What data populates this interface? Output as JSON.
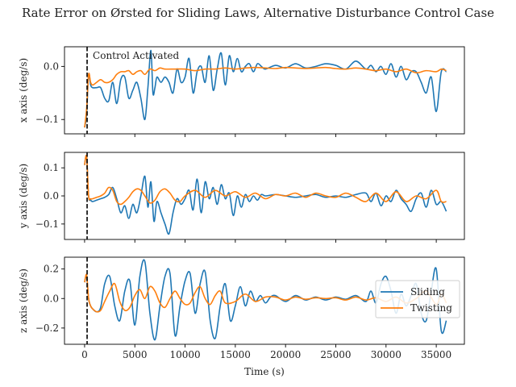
{
  "chart_data": {
    "type": "line",
    "title": "Rate Error on Ørsted for Sliding Laws, Alternative Disturbance Control Case",
    "xlabel": "Time (s)",
    "xlim": [
      -2000,
      37800
    ],
    "xticks": [
      0,
      5000,
      10000,
      15000,
      20000,
      25000,
      30000,
      35000
    ],
    "annotation": {
      "text": "Control Activated",
      "x": 250
    },
    "legend": {
      "position": "right",
      "entries": [
        "Sliding",
        "Twisting"
      ]
    },
    "colors": {
      "Sliding": "#1f77b4",
      "Twisting": "#ff7f0e",
      "vline": "#000000"
    },
    "panels": [
      {
        "ylabel": "x axis (deg/s)",
        "ylim": [
          -0.127,
          0.037
        ],
        "yticks": [
          0.0,
          -0.1
        ],
        "ytick_labels": [
          "0.0",
          "−0.1"
        ],
        "series": [
          {
            "name": "Sliding",
            "x": [
              0,
              200,
              400,
              600,
              800,
              1200,
              1600,
              2000,
              2400,
              2800,
              3200,
              3600,
              4000,
              4400,
              4800,
              5200,
              5600,
              6000,
              6300,
              6600,
              6800,
              7000,
              7200,
              7600,
              8000,
              8400,
              8800,
              9200,
              9600,
              10000,
              10400,
              10800,
              11200,
              11600,
              12000,
              12400,
              12800,
              13200,
              13600,
              14000,
              14400,
              14800,
              15200,
              15600,
              16000,
              16400,
              16800,
              17200,
              17600,
              18000,
              19000,
              20000,
              21000,
              22000,
              23000,
              24000,
              25000,
              26000,
              27000,
              28000,
              28500,
              29000,
              29500,
              30000,
              30500,
              31000,
              31500,
              32000,
              32500,
              33000,
              33500,
              34000,
              34500,
              35000,
              35500,
              36000
            ],
            "values": [
              -0.115,
              -0.09,
              -0.015,
              -0.035,
              -0.04,
              -0.04,
              -0.04,
              -0.06,
              -0.065,
              -0.03,
              -0.07,
              -0.025,
              -0.02,
              -0.06,
              -0.045,
              -0.03,
              -0.06,
              -0.1,
              -0.04,
              0.03,
              -0.05,
              -0.04,
              -0.02,
              -0.03,
              -0.02,
              -0.03,
              -0.05,
              -0.005,
              -0.03,
              -0.02,
              0.015,
              -0.05,
              -0.01,
              0.0,
              -0.03,
              0.02,
              -0.045,
              -0.005,
              0.025,
              -0.035,
              0.02,
              -0.01,
              0.015,
              -0.01,
              0.0,
              0.005,
              -0.01,
              0.005,
              0.0,
              -0.005,
              0.002,
              -0.003,
              0.005,
              -0.003,
              0.0,
              0.005,
              0.002,
              -0.005,
              0.01,
              -0.005,
              0.002,
              -0.01,
              0.0,
              -0.015,
              0.005,
              -0.02,
              0.0,
              -0.025,
              -0.01,
              -0.01,
              -0.03,
              -0.05,
              -0.02,
              -0.085,
              -0.01,
              -0.01
            ]
          },
          {
            "name": "Twisting",
            "x": [
              0,
              200,
              400,
              600,
              800,
              1200,
              1600,
              2000,
              2400,
              2800,
              3200,
              3600,
              4000,
              4400,
              4800,
              5200,
              5600,
              6000,
              6500,
              7000,
              7500,
              8000,
              9000,
              10000,
              11000,
              12000,
              13000,
              14000,
              15000,
              16000,
              17000,
              18000,
              19000,
              20000,
              21000,
              22000,
              23000,
              24000,
              25000,
              26000,
              27000,
              28000,
              29000,
              30000,
              31000,
              32000,
              33000,
              34000,
              35000,
              35500,
              36000
            ],
            "values": [
              -0.115,
              -0.08,
              -0.015,
              -0.03,
              -0.035,
              -0.03,
              -0.025,
              -0.03,
              -0.03,
              -0.025,
              -0.015,
              -0.01,
              -0.01,
              -0.008,
              -0.015,
              -0.01,
              -0.008,
              -0.015,
              -0.005,
              -0.008,
              -0.003,
              -0.005,
              -0.005,
              -0.005,
              -0.008,
              -0.005,
              -0.005,
              -0.003,
              -0.005,
              -0.003,
              -0.002,
              -0.003,
              -0.004,
              -0.002,
              -0.003,
              -0.004,
              -0.003,
              -0.002,
              -0.004,
              -0.005,
              -0.003,
              -0.005,
              -0.008,
              -0.005,
              -0.01,
              -0.005,
              -0.012,
              -0.008,
              -0.01,
              -0.005,
              -0.008
            ]
          }
        ]
      },
      {
        "ylabel": "y axis (deg/s)",
        "ylim": [
          -0.155,
          0.155
        ],
        "yticks": [
          0.1,
          0.0,
          -0.1
        ],
        "ytick_labels": [
          "0.1",
          "0.0",
          "−0.1"
        ],
        "series": [
          {
            "name": "Sliding",
            "x": [
              0,
              200,
              400,
              600,
              800,
              1200,
              1600,
              2000,
              2400,
              2800,
              3200,
              3600,
              4000,
              4400,
              4800,
              5200,
              5600,
              6000,
              6300,
              6600,
              6900,
              7200,
              7600,
              8000,
              8400,
              8800,
              9200,
              9600,
              10000,
              10400,
              10800,
              11200,
              11600,
              12000,
              12400,
              12800,
              13200,
              13600,
              14000,
              14400,
              14800,
              15200,
              15600,
              16000,
              16400,
              16800,
              17200,
              17600,
              18000,
              19000,
              20000,
              21000,
              22000,
              23000,
              24000,
              25000,
              26000,
              27000,
              28000,
              28500,
              29000,
              29500,
              30000,
              30500,
              31000,
              31500,
              32000,
              32500,
              33000,
              33500,
              34000,
              34500,
              35000,
              35500,
              36000
            ],
            "values": [
              0.11,
              0.14,
              0.0,
              -0.015,
              -0.02,
              -0.015,
              -0.01,
              -0.005,
              0.005,
              0.03,
              -0.01,
              -0.06,
              -0.035,
              -0.08,
              -0.03,
              -0.06,
              0.0,
              0.07,
              -0.04,
              0.05,
              -0.09,
              -0.02,
              -0.06,
              -0.1,
              -0.135,
              -0.06,
              -0.01,
              -0.03,
              -0.01,
              0.02,
              -0.05,
              0.06,
              -0.06,
              0.05,
              -0.01,
              0.03,
              -0.03,
              0.04,
              -0.01,
              0.01,
              -0.07,
              0.0,
              -0.04,
              0.005,
              -0.02,
              0.0,
              -0.015,
              0.005,
              0.0,
              0.005,
              0.0,
              -0.005,
              0.0,
              0.005,
              -0.005,
              0.0,
              -0.005,
              0.005,
              0.01,
              -0.02,
              0.01,
              -0.035,
              0.0,
              -0.02,
              0.02,
              -0.01,
              -0.03,
              -0.055,
              -0.01,
              0.01,
              -0.04,
              0.02,
              -0.03,
              -0.02,
              -0.055
            ]
          },
          {
            "name": "Twisting",
            "x": [
              0,
              200,
              400,
              600,
              800,
              1200,
              1600,
              2000,
              2400,
              2800,
              3200,
              3600,
              4000,
              4400,
              4800,
              5200,
              5600,
              6000,
              6500,
              7000,
              7500,
              8000,
              8500,
              9000,
              9500,
              10000,
              11000,
              12000,
              13000,
              14000,
              15000,
              16000,
              17000,
              18000,
              19000,
              20000,
              21000,
              22000,
              23000,
              24000,
              25000,
              26000,
              27000,
              28000,
              29000,
              30000,
              31000,
              32000,
              33000,
              34000,
              35000,
              35500,
              36000
            ],
            "values": [
              0.11,
              0.14,
              0.0,
              -0.01,
              -0.01,
              -0.005,
              0.0,
              0.01,
              0.03,
              0.02,
              -0.02,
              -0.03,
              -0.02,
              -0.005,
              0.015,
              0.025,
              0.02,
              0.0,
              -0.025,
              -0.015,
              0.015,
              0.025,
              0.01,
              -0.015,
              -0.02,
              0.0,
              0.02,
              -0.005,
              0.02,
              0.0,
              0.015,
              -0.005,
              0.01,
              -0.01,
              0.005,
              0.0,
              0.01,
              -0.005,
              0.01,
              0.0,
              -0.005,
              0.01,
              -0.005,
              -0.02,
              0.01,
              -0.02,
              0.015,
              -0.02,
              0.0,
              -0.01,
              0.02,
              -0.02,
              -0.02
            ]
          }
        ]
      },
      {
        "ylabel": "z axis (deg/s)",
        "ylim": [
          -0.31,
          0.28
        ],
        "yticks": [
          0.2,
          0.0,
          -0.2
        ],
        "ytick_labels": [
          "0.2",
          "0.0",
          "−0.2"
        ],
        "series": [
          {
            "name": "Sliding",
            "x": [
              0,
              200,
              400,
              600,
              800,
              1200,
              1600,
              2000,
              2500,
              3000,
              3500,
              4000,
              4500,
              5000,
              5500,
              6000,
              6500,
              7000,
              7500,
              8000,
              8500,
              9000,
              9500,
              10000,
              10500,
              11000,
              11500,
              12000,
              12500,
              13000,
              13500,
              14000,
              14500,
              15000,
              15500,
              16000,
              16500,
              17000,
              17500,
              18000,
              18500,
              19000,
              20000,
              21000,
              22000,
              23000,
              24000,
              25000,
              26000,
              27000,
              28000,
              28500,
              29000,
              29500,
              30000,
              30500,
              31000,
              31500,
              32000,
              32500,
              33000,
              33500,
              34000,
              34500,
              35000,
              35500,
              36000
            ],
            "values": [
              0.11,
              0.15,
              0.0,
              -0.05,
              -0.07,
              -0.09,
              -0.06,
              0.1,
              0.15,
              -0.05,
              -0.15,
              0.05,
              0.12,
              -0.18,
              0.15,
              0.25,
              -0.1,
              -0.28,
              -0.05,
              0.15,
              0.17,
              -0.25,
              -0.05,
              0.12,
              0.17,
              -0.1,
              0.1,
              0.18,
              -0.15,
              -0.27,
              -0.05,
              0.1,
              -0.15,
              -0.05,
              0.08,
              -0.05,
              0.05,
              -0.02,
              0.02,
              -0.03,
              0.01,
              0.02,
              -0.02,
              0.02,
              -0.01,
              0.01,
              -0.01,
              0.01,
              -0.005,
              0.02,
              -0.02,
              0.05,
              -0.03,
              0.1,
              0.15,
              0.05,
              -0.1,
              0.03,
              -0.05,
              0.02,
              0.1,
              -0.1,
              -0.15,
              0.05,
              0.2,
              -0.22,
              -0.15
            ]
          },
          {
            "name": "Twisting",
            "x": [
              0,
              200,
              400,
              600,
              800,
              1200,
              1600,
              2000,
              2500,
              3000,
              3500,
              4000,
              4500,
              5000,
              5500,
              6000,
              6500,
              7000,
              7500,
              8000,
              8500,
              9000,
              9500,
              10000,
              10500,
              11000,
              11500,
              12000,
              12500,
              13000,
              13500,
              14000,
              15000,
              16000,
              17000,
              18000,
              19000,
              20000,
              21000,
              22000,
              23000,
              24000,
              25000,
              26000,
              27000,
              28000,
              29000,
              30000,
              31000,
              32000,
              33000,
              34000,
              35000,
              35500,
              36000
            ],
            "values": [
              0.11,
              0.16,
              0.0,
              -0.05,
              -0.07,
              -0.09,
              -0.08,
              -0.02,
              0.05,
              0.1,
              -0.02,
              -0.08,
              -0.06,
              0.02,
              0.06,
              0.0,
              0.08,
              0.05,
              -0.03,
              -0.06,
              0.0,
              0.05,
              0.0,
              -0.04,
              -0.03,
              0.04,
              0.08,
              0.0,
              -0.04,
              0.02,
              0.05,
              -0.03,
              -0.02,
              0.03,
              -0.02,
              0.01,
              0.01,
              -0.01,
              0.01,
              -0.005,
              0.005,
              0.0,
              0.005,
              -0.01,
              0.01,
              -0.01,
              0.005,
              -0.02,
              0.01,
              -0.03,
              0.0,
              0.05,
              -0.04,
              0.03,
              -0.03
            ]
          }
        ]
      }
    ]
  }
}
